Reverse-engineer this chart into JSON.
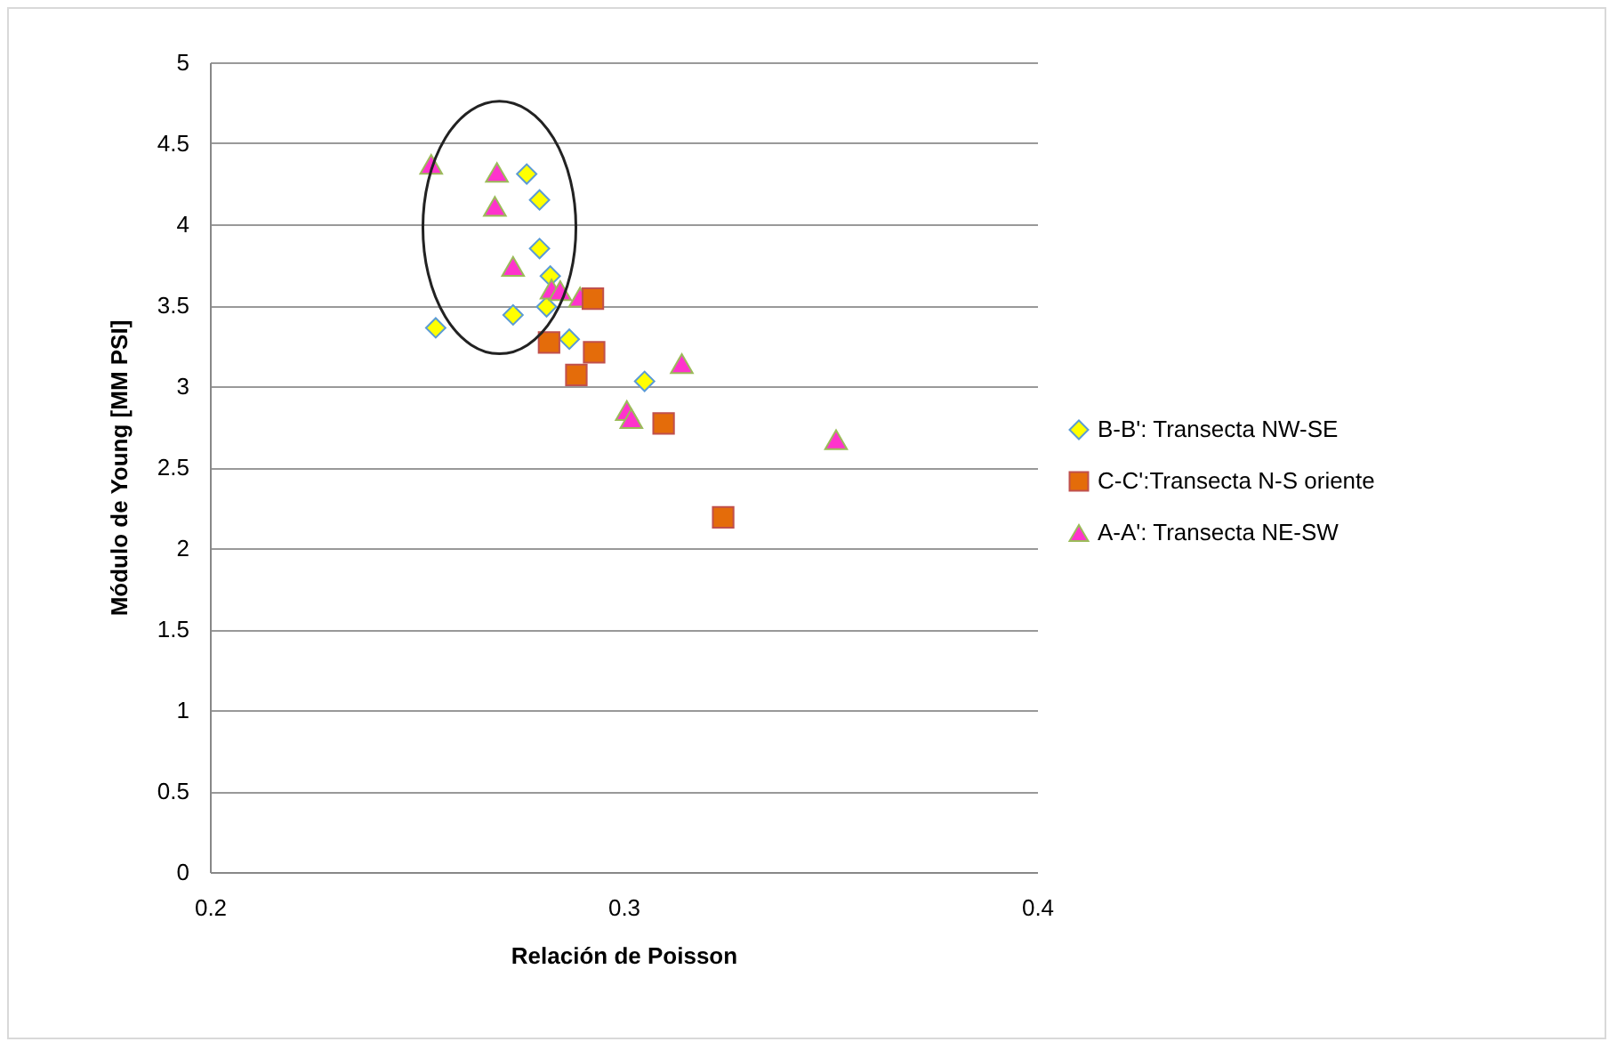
{
  "chart_data": {
    "type": "scatter",
    "xlabel": "Relación de Poisson",
    "ylabel": "Módulo de Young [MM PSI]",
    "xlim": [
      0.2,
      0.4
    ],
    "xticks": [
      0.2,
      0.3,
      0.4
    ],
    "ylim": [
      0,
      5
    ],
    "yticks": [
      0,
      0.5,
      1,
      1.5,
      2,
      2.5,
      3,
      3.5,
      4,
      4.5,
      5
    ],
    "grid": "y",
    "legend": "right",
    "series": [
      {
        "name": "B-B': Transecta NW-SE",
        "color": "#ffff00",
        "marker": "diamond",
        "x": [
          0.2766,
          0.2797,
          0.2797,
          0.2823,
          0.2814,
          0.2733,
          0.2546,
          0.2869,
          0.3051
        ],
        "values": [
          4.31,
          4.15,
          3.85,
          3.68,
          3.49,
          3.44,
          3.36,
          3.29,
          3.03
        ]
      },
      {
        "name": "C-C':Transecta N-S oriente",
        "color": "#e46c0a",
        "marker": "square",
        "x": [
          0.2926,
          0.282,
          0.2929,
          0.2886,
          0.3097,
          0.3241
        ],
        "values": [
          3.54,
          3.27,
          3.21,
          3.07,
          2.77,
          2.19
        ]
      },
      {
        "name": "A-A': Transecta NE-SW",
        "color": "#ff33cc",
        "marker": "triangle",
        "x": [
          0.2535,
          0.2694,
          0.2689,
          0.2733,
          0.2826,
          0.2847,
          0.2895,
          0.3141,
          0.3008,
          0.3019,
          0.3514
        ],
        "values": [
          4.37,
          4.32,
          4.11,
          3.74,
          3.6,
          3.59,
          3.55,
          3.14,
          2.85,
          2.8,
          2.67
        ]
      }
    ]
  }
}
